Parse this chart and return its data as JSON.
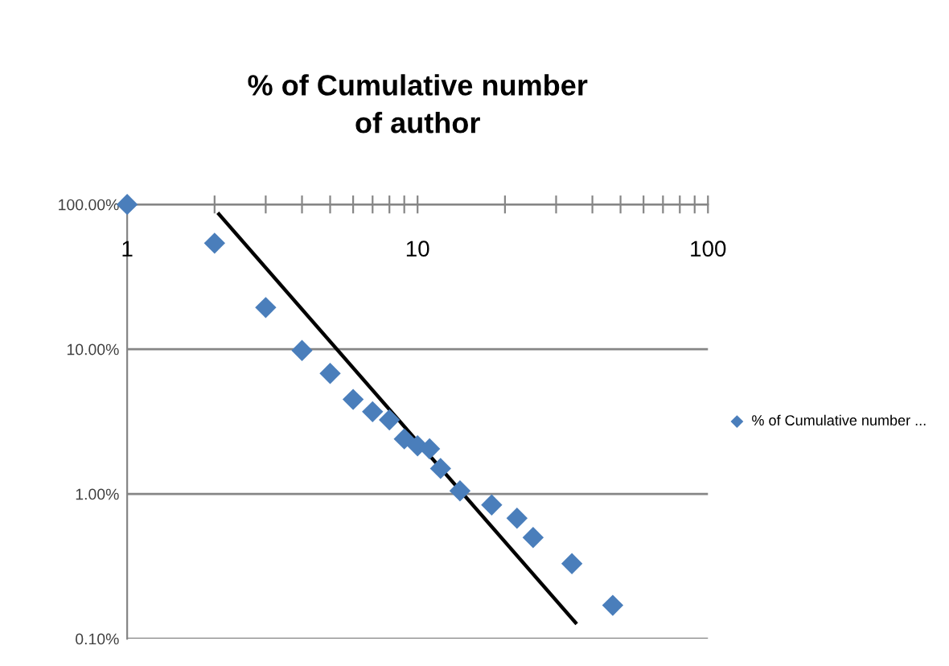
{
  "chart_data": {
    "type": "scatter",
    "title": "% of Cumulative number\nof author",
    "x": [
      1,
      2,
      3,
      4,
      5,
      6,
      7,
      8,
      9,
      10,
      11,
      12,
      14,
      18,
      22,
      25,
      34,
      47
    ],
    "series": [
      {
        "name": "% of Cumulative number ...",
        "color": "#4a7ebb",
        "marker": "diamond",
        "values": [
          100,
          54,
          19.4,
          9.8,
          6.8,
          4.5,
          3.7,
          3.25,
          2.4,
          2.15,
          2.05,
          1.5,
          1.05,
          0.84,
          0.68,
          0.5,
          0.33,
          0.17
        ]
      },
      {
        "type": "line",
        "color": "#000000",
        "x": [
          2.07,
          35
        ],
        "values": [
          85.7,
          0.129
        ],
        "marker": "none",
        "line_style": "solid"
      }
    ],
    "log": "xy",
    "xlim": [
      1,
      100
    ],
    "ylim": [
      0.1,
      100
    ],
    "xticks": [
      1,
      {
        "value": 2,
        "label": null
      },
      {
        "value": 3,
        "label": null
      },
      {
        "value": 4,
        "label": null
      },
      {
        "value": 5,
        "label": null
      },
      {
        "value": 6,
        "label": null
      },
      {
        "value": 7,
        "label": null
      },
      {
        "value": 8,
        "label": null
      },
      {
        "value": 9,
        "label": null
      },
      10,
      {
        "value": 20,
        "label": null
      },
      {
        "value": 30,
        "label": null
      },
      {
        "value": 40,
        "label": null
      },
      {
        "value": 50,
        "label": null
      },
      {
        "value": 60,
        "label": null
      },
      {
        "value": 70,
        "label": null
      },
      {
        "value": 80,
        "label": null
      },
      {
        "value": 90,
        "label": null
      },
      100
    ],
    "yticks": [
      {
        "value": 0.1,
        "label": "0.10%"
      },
      {
        "value": 1,
        "label": "1.00%"
      },
      {
        "value": 10,
        "label": "10.00%"
      },
      {
        "value": 100,
        "label": "100.00%"
      }
    ],
    "grid": "y",
    "legend": "right"
  }
}
